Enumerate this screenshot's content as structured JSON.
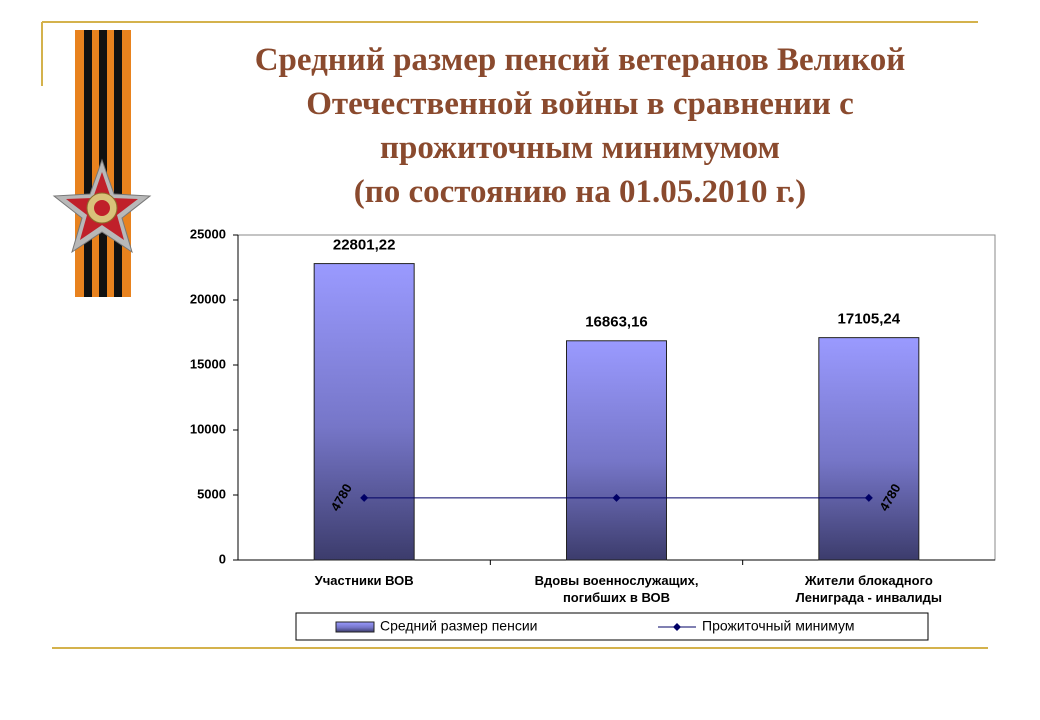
{
  "chart_data": {
    "type": "bar",
    "title": "Средний размер пенсий ветеранов Великой\nОтечественной войны в сравнении с\nпрожиточным минимумом\n(по состоянию на 01.05.2010 г.)",
    "categories": [
      "Участники ВОВ",
      "Вдовы военнослужащих,\nпогибших в ВОВ",
      "Жители блокадного\nЛениграда - инвалиды"
    ],
    "series": [
      {
        "name": "Средний размер пенсии",
        "type": "bar",
        "color": "#8f8fef",
        "values": [
          22801.22,
          16863.16,
          17105.24
        ],
        "value_labels": [
          "22801,22",
          "16863,16",
          "17105,24"
        ]
      },
      {
        "name": "Прожиточный минимум",
        "type": "line",
        "color": "#000066",
        "values": [
          4780,
          4780,
          4780
        ],
        "value_labels": [
          "4780",
          null,
          "4780"
        ]
      }
    ],
    "ylim": [
      0,
      25000
    ],
    "yticks": [
      0,
      5000,
      10000,
      15000,
      20000,
      25000
    ],
    "legend": "bottom"
  }
}
